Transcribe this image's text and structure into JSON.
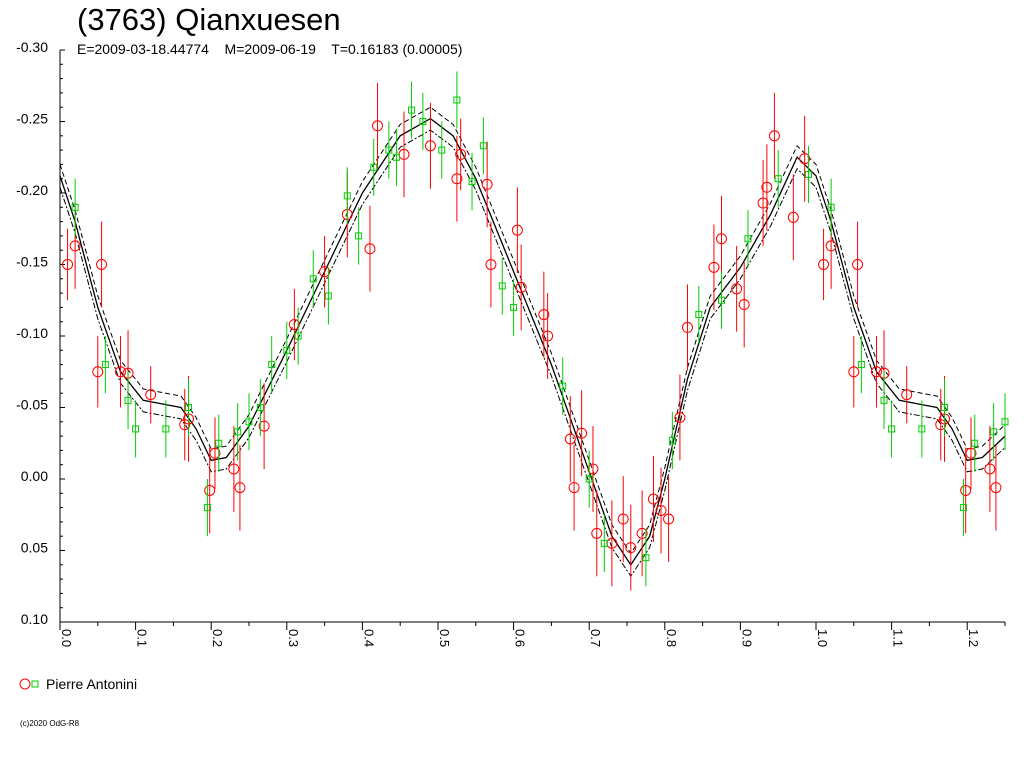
{
  "title": "(3763) Qianxuesen",
  "subtitle": "E=2009-03-18.44774    M=2009-06-19    T=0.16183 (0.00005)",
  "credit": "(c)2020 OdG-R8",
  "colors": {
    "series1": "#ff0000",
    "series2": "#00cc00",
    "errorbar": "#ff0000",
    "axis": "#000000"
  },
  "chart_data": {
    "type": "scatter",
    "xlabel": "",
    "ylabel": "",
    "xlim": [
      0.0,
      1.25
    ],
    "ylim": [
      -0.3,
      0.1
    ],
    "y_inverted": true,
    "x_ticks": [
      "0.0",
      "0.1",
      "0.2",
      "0.3",
      "0.4",
      "0.5",
      "0.6",
      "0.7",
      "0.8",
      "0.9",
      "1.0",
      "1.1",
      "1.2"
    ],
    "y_ticks": [
      "-0.30",
      "-0.25",
      "-0.20",
      "-0.15",
      "-0.10",
      "-0.05",
      "0.00",
      "0.05",
      "0.10"
    ],
    "legend": {
      "position": "bottom-left",
      "entries": [
        "Pierre Antonini"
      ]
    },
    "series": [
      {
        "marker": "circle",
        "color": "#ff0000",
        "points": [
          [
            0.01,
            -0.15,
            0.025
          ],
          [
            0.02,
            -0.163,
            0.03
          ],
          [
            0.05,
            -0.075,
            0.025
          ],
          [
            0.055,
            -0.15,
            0.03
          ],
          [
            0.08,
            -0.075,
            0.025
          ],
          [
            0.09,
            -0.074,
            0.03
          ],
          [
            0.12,
            -0.059,
            0.02
          ],
          [
            0.165,
            -0.038,
            0.025
          ],
          [
            0.17,
            -0.042,
            0.03
          ],
          [
            0.198,
            0.008,
            0.03
          ],
          [
            0.205,
            -0.018,
            0.025
          ],
          [
            0.23,
            -0.007,
            0.03
          ],
          [
            0.238,
            0.006,
            0.03
          ],
          [
            0.27,
            -0.037,
            0.03
          ],
          [
            0.31,
            -0.108,
            0.025
          ],
          [
            0.35,
            -0.145,
            0.025
          ],
          [
            0.38,
            -0.185,
            0.03
          ],
          [
            0.41,
            -0.161,
            0.03
          ],
          [
            0.42,
            -0.247,
            0.03
          ],
          [
            0.455,
            -0.227,
            0.03
          ],
          [
            0.49,
            -0.233,
            0.03
          ],
          [
            0.525,
            -0.21,
            0.03
          ],
          [
            0.53,
            -0.227,
            0.025
          ],
          [
            0.565,
            -0.206,
            0.03
          ],
          [
            0.57,
            -0.15,
            0.03
          ],
          [
            0.605,
            -0.174,
            0.03
          ],
          [
            0.61,
            -0.134,
            0.03
          ],
          [
            0.64,
            -0.115,
            0.03
          ],
          [
            0.645,
            -0.1,
            0.03
          ],
          [
            0.675,
            -0.028,
            0.03
          ],
          [
            0.68,
            0.006,
            0.03
          ],
          [
            0.69,
            -0.032,
            0.03
          ],
          [
            0.705,
            -0.007,
            0.03
          ],
          [
            0.71,
            0.038,
            0.03
          ],
          [
            0.73,
            0.045,
            0.03
          ],
          [
            0.745,
            0.028,
            0.03
          ],
          [
            0.755,
            0.048,
            0.03
          ],
          [
            0.77,
            0.038,
            0.03
          ],
          [
            0.785,
            0.014,
            0.03
          ],
          [
            0.795,
            0.022,
            0.03
          ],
          [
            0.805,
            0.028,
            0.03
          ],
          [
            0.82,
            -0.043,
            0.03
          ],
          [
            0.83,
            -0.106,
            0.03
          ],
          [
            0.865,
            -0.148,
            0.03
          ],
          [
            0.875,
            -0.168,
            0.03
          ],
          [
            0.895,
            -0.133,
            0.03
          ],
          [
            0.905,
            -0.122,
            0.03
          ],
          [
            0.93,
            -0.193,
            0.03
          ],
          [
            0.935,
            -0.204,
            0.03
          ],
          [
            0.945,
            -0.24,
            0.03
          ],
          [
            0.97,
            -0.183,
            0.03
          ],
          [
            0.985,
            -0.224,
            0.03
          ],
          [
            1.01,
            -0.15,
            0.025
          ],
          [
            1.02,
            -0.163,
            0.03
          ],
          [
            1.05,
            -0.075,
            0.025
          ],
          [
            1.055,
            -0.15,
            0.03
          ],
          [
            1.08,
            -0.075,
            0.025
          ],
          [
            1.09,
            -0.074,
            0.03
          ],
          [
            1.12,
            -0.059,
            0.02
          ],
          [
            1.165,
            -0.038,
            0.025
          ],
          [
            1.17,
            -0.042,
            0.03
          ],
          [
            1.198,
            0.008,
            0.03
          ],
          [
            1.205,
            -0.018,
            0.025
          ],
          [
            1.23,
            -0.007,
            0.03
          ],
          [
            1.238,
            0.006,
            0.03
          ]
        ]
      },
      {
        "marker": "square",
        "color": "#00cc00",
        "points": [
          [
            0.02,
            -0.19,
            0.02
          ],
          [
            0.06,
            -0.08,
            0.02
          ],
          [
            0.09,
            -0.055,
            0.02
          ],
          [
            0.1,
            -0.035,
            0.02
          ],
          [
            0.14,
            -0.035,
            0.02
          ],
          [
            0.17,
            -0.05,
            0.02
          ],
          [
            0.195,
            0.02,
            0.02
          ],
          [
            0.21,
            -0.025,
            0.02
          ],
          [
            0.235,
            -0.033,
            0.02
          ],
          [
            0.25,
            -0.04,
            0.02
          ],
          [
            0.265,
            -0.05,
            0.02
          ],
          [
            0.28,
            -0.08,
            0.02
          ],
          [
            0.3,
            -0.09,
            0.02
          ],
          [
            0.315,
            -0.1,
            0.02
          ],
          [
            0.335,
            -0.14,
            0.02
          ],
          [
            0.355,
            -0.128,
            0.02
          ],
          [
            0.38,
            -0.198,
            0.02
          ],
          [
            0.395,
            -0.17,
            0.02
          ],
          [
            0.415,
            -0.218,
            0.02
          ],
          [
            0.435,
            -0.23,
            0.02
          ],
          [
            0.445,
            -0.225,
            0.02
          ],
          [
            0.465,
            -0.258,
            0.02
          ],
          [
            0.48,
            -0.25,
            0.02
          ],
          [
            0.505,
            -0.23,
            0.02
          ],
          [
            0.525,
            -0.265,
            0.02
          ],
          [
            0.545,
            -0.208,
            0.02
          ],
          [
            0.56,
            -0.233,
            0.02
          ],
          [
            0.585,
            -0.135,
            0.02
          ],
          [
            0.6,
            -0.12,
            0.02
          ],
          [
            0.665,
            -0.065,
            0.02
          ],
          [
            0.7,
            0.0,
            0.02
          ],
          [
            0.72,
            0.045,
            0.02
          ],
          [
            0.775,
            0.055,
            0.02
          ],
          [
            0.81,
            -0.027,
            0.02
          ],
          [
            0.845,
            -0.115,
            0.02
          ],
          [
            0.875,
            -0.125,
            0.02
          ],
          [
            0.91,
            -0.168,
            0.02
          ],
          [
            0.95,
            -0.21,
            0.02
          ],
          [
            0.99,
            -0.213,
            0.02
          ],
          [
            1.02,
            -0.19,
            0.02
          ],
          [
            1.06,
            -0.08,
            0.02
          ],
          [
            1.09,
            -0.055,
            0.02
          ],
          [
            1.1,
            -0.035,
            0.02
          ],
          [
            1.14,
            -0.035,
            0.02
          ],
          [
            1.17,
            -0.05,
            0.02
          ],
          [
            1.195,
            0.02,
            0.02
          ],
          [
            1.21,
            -0.025,
            0.02
          ],
          [
            1.235,
            -0.033,
            0.02
          ],
          [
            1.25,
            -0.04,
            0.02
          ]
        ]
      }
    ],
    "fit_curve": {
      "style": "solid",
      "points": [
        [
          0.0,
          -0.212
        ],
        [
          0.02,
          -0.18
        ],
        [
          0.05,
          -0.12
        ],
        [
          0.08,
          -0.075
        ],
        [
          0.11,
          -0.055
        ],
        [
          0.14,
          -0.052
        ],
        [
          0.16,
          -0.05
        ],
        [
          0.18,
          -0.035
        ],
        [
          0.2,
          -0.013
        ],
        [
          0.22,
          -0.015
        ],
        [
          0.25,
          -0.037
        ],
        [
          0.3,
          -0.09
        ],
        [
          0.35,
          -0.145
        ],
        [
          0.4,
          -0.2
        ],
        [
          0.45,
          -0.24
        ],
        [
          0.49,
          -0.252
        ],
        [
          0.52,
          -0.24
        ],
        [
          0.55,
          -0.21
        ],
        [
          0.6,
          -0.145
        ],
        [
          0.65,
          -0.08
        ],
        [
          0.7,
          -0.005
        ],
        [
          0.73,
          0.04
        ],
        [
          0.755,
          0.06
        ],
        [
          0.78,
          0.04
        ],
        [
          0.8,
          0.0
        ],
        [
          0.83,
          -0.07
        ],
        [
          0.86,
          -0.12
        ],
        [
          0.9,
          -0.148
        ],
        [
          0.94,
          -0.185
        ],
        [
          0.975,
          -0.225
        ],
        [
          1.0,
          -0.212
        ],
        [
          1.02,
          -0.18
        ],
        [
          1.05,
          -0.12
        ],
        [
          1.08,
          -0.075
        ],
        [
          1.11,
          -0.055
        ],
        [
          1.14,
          -0.052
        ],
        [
          1.16,
          -0.05
        ],
        [
          1.18,
          -0.035
        ],
        [
          1.2,
          -0.013
        ],
        [
          1.22,
          -0.015
        ],
        [
          1.25,
          -0.03
        ]
      ],
      "band_offset": 0.008
    }
  }
}
